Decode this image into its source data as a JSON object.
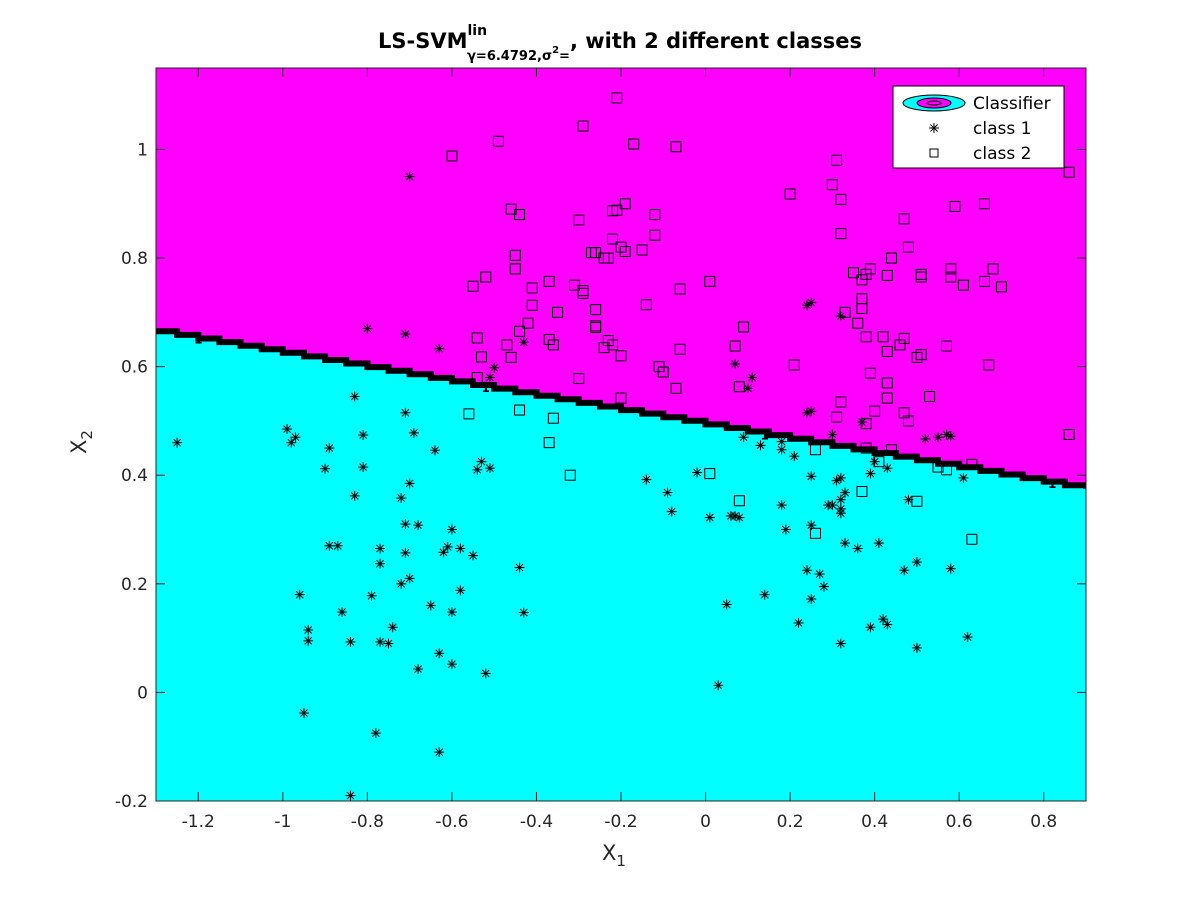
{
  "chart_data": {
    "type": "scatter",
    "title": {
      "main": "LS-SVM",
      "sup": "lin",
      "sub_gamma": "γ=6.4792,",
      "sub_sigma": "σ",
      "sub_sigma_exp": "2",
      "sub_end": "=",
      "tail": ", with 2 different classes"
    },
    "xlabel": "X",
    "xlabel_sub": "1",
    "ylabel": "X",
    "ylabel_sub": "2",
    "xlim": [
      -1.3,
      0.9
    ],
    "ylim": [
      -0.2,
      1.15
    ],
    "xticks": [
      "-1.2",
      "-1",
      "-0.8",
      "-0.6",
      "-0.4",
      "-0.2",
      "0",
      "0.2",
      "0.4",
      "0.6",
      "0.8"
    ],
    "yticks": [
      "-0.2",
      "0",
      "0.2",
      "0.4",
      "0.6",
      "0.8",
      "1"
    ],
    "grid": false,
    "legend_position": "top-right",
    "legend": [
      "Classifier",
      "class 1",
      "class 2"
    ],
    "region_colors": {
      "class1": "#00ffff",
      "class2": "#ff00ff"
    },
    "boundary": {
      "x": [
        -1.3,
        0.9
      ],
      "y": [
        0.665,
        0.375
      ],
      "label": "1"
    },
    "class1": [
      [
        -1.25,
        0.46
      ],
      [
        -0.99,
        0.485
      ],
      [
        -0.97,
        0.47
      ],
      [
        -0.98,
        0.46
      ],
      [
        -0.9,
        0.412
      ],
      [
        -0.89,
        0.45
      ],
      [
        -0.81,
        0.474
      ],
      [
        -0.81,
        0.415
      ],
      [
        -0.83,
        0.545
      ],
      [
        -0.8,
        0.67
      ],
      [
        -0.71,
        0.66
      ],
      [
        -0.7,
        0.95
      ],
      [
        -0.71,
        0.515
      ],
      [
        -0.69,
        0.478
      ],
      [
        -0.72,
        0.358
      ],
      [
        -0.7,
        0.385
      ],
      [
        -0.71,
        0.31
      ],
      [
        -0.68,
        0.308
      ],
      [
        -0.64,
        0.446
      ],
      [
        -0.63,
        0.633
      ],
      [
        -0.83,
        0.362
      ],
      [
        -0.89,
        0.27
      ],
      [
        -0.87,
        0.27
      ],
      [
        -0.77,
        0.265
      ],
      [
        -0.77,
        0.237
      ],
      [
        -0.71,
        0.257
      ],
      [
        -0.7,
        0.21
      ],
      [
        -0.72,
        0.2
      ],
      [
        -0.79,
        0.178
      ],
      [
        -0.96,
        0.18
      ],
      [
        -0.94,
        0.115
      ],
      [
        -0.94,
        0.095
      ],
      [
        -0.86,
        0.148
      ],
      [
        -0.84,
        0.093
      ],
      [
        -0.77,
        0.093
      ],
      [
        -0.75,
        0.09
      ],
      [
        -0.74,
        0.12
      ],
      [
        -0.68,
        0.043
      ],
      [
        -0.62,
        0.258
      ],
      [
        -0.61,
        0.268
      ],
      [
        -0.6,
        0.3
      ],
      [
        -0.58,
        0.265
      ],
      [
        -0.58,
        0.188
      ],
      [
        -0.65,
        0.16
      ],
      [
        -0.6,
        0.148
      ],
      [
        -0.63,
        0.072
      ],
      [
        -0.6,
        0.052
      ],
      [
        -0.52,
        0.035
      ],
      [
        -0.55,
        0.252
      ],
      [
        -0.95,
        -0.038
      ],
      [
        -0.78,
        -0.075
      ],
      [
        -0.63,
        -0.11
      ],
      [
        -0.84,
        -0.19
      ],
      [
        -0.54,
        0.41
      ],
      [
        -0.53,
        0.425
      ],
      [
        -0.51,
        0.413
      ],
      [
        -0.5,
        0.598
      ],
      [
        -0.51,
        0.58
      ],
      [
        -0.44,
        0.23
      ],
      [
        -0.43,
        0.147
      ],
      [
        -0.43,
        0.645
      ],
      [
        -0.14,
        0.392
      ],
      [
        -0.09,
        0.368
      ],
      [
        -0.08,
        0.333
      ],
      [
        -0.02,
        0.405
      ],
      [
        0.01,
        0.322
      ],
      [
        0.05,
        0.162
      ],
      [
        0.06,
        0.325
      ],
      [
        0.07,
        0.325
      ],
      [
        0.08,
        0.322
      ],
      [
        0.07,
        0.605
      ],
      [
        0.09,
        0.47
      ],
      [
        0.1,
        0.56
      ],
      [
        0.11,
        0.58
      ],
      [
        0.13,
        0.455
      ],
      [
        0.14,
        0.18
      ],
      [
        0.18,
        0.462
      ],
      [
        0.18,
        0.447
      ],
      [
        0.18,
        0.345
      ],
      [
        0.19,
        0.3
      ],
      [
        0.21,
        0.435
      ],
      [
        0.22,
        0.128
      ],
      [
        0.24,
        0.225
      ],
      [
        0.24,
        0.713
      ],
      [
        0.25,
        0.718
      ],
      [
        0.25,
        0.518
      ],
      [
        0.24,
        0.515
      ],
      [
        0.25,
        0.398
      ],
      [
        0.25,
        0.308
      ],
      [
        0.25,
        0.172
      ],
      [
        0.27,
        0.218
      ],
      [
        0.28,
        0.195
      ],
      [
        0.29,
        0.345
      ],
      [
        0.3,
        0.345
      ],
      [
        0.3,
        0.475
      ],
      [
        0.31,
        0.39
      ],
      [
        0.32,
        0.395
      ],
      [
        0.32,
        0.355
      ],
      [
        0.32,
        0.338
      ],
      [
        0.32,
        0.33
      ],
      [
        0.32,
        0.09
      ],
      [
        0.32,
        0.693
      ],
      [
        0.33,
        0.368
      ],
      [
        0.33,
        0.275
      ],
      [
        0.36,
        0.265
      ],
      [
        0.37,
        0.498
      ],
      [
        0.39,
        0.12
      ],
      [
        0.39,
        0.403
      ],
      [
        0.4,
        0.425
      ],
      [
        0.41,
        0.275
      ],
      [
        0.42,
        0.135
      ],
      [
        0.43,
        0.125
      ],
      [
        0.43,
        0.413
      ],
      [
        0.47,
        0.225
      ],
      [
        0.48,
        0.355
      ],
      [
        0.5,
        0.24
      ],
      [
        0.5,
        0.082
      ],
      [
        0.52,
        0.467
      ],
      [
        0.55,
        0.47
      ],
      [
        0.57,
        0.475
      ],
      [
        0.58,
        0.472
      ],
      [
        0.58,
        0.228
      ],
      [
        0.61,
        0.395
      ],
      [
        0.62,
        0.102
      ],
      [
        0.03,
        0.013
      ]
    ],
    "class2": [
      [
        -0.6,
        0.988
      ],
      [
        -0.49,
        1.015
      ],
      [
        -0.29,
        1.043
      ],
      [
        -0.21,
        1.095
      ],
      [
        -0.17,
        1.01
      ],
      [
        -0.07,
        1.005
      ],
      [
        -0.46,
        0.89
      ],
      [
        -0.44,
        0.88
      ],
      [
        -0.3,
        0.87
      ],
      [
        -0.22,
        0.887
      ],
      [
        -0.21,
        0.888
      ],
      [
        -0.19,
        0.9
      ],
      [
        -0.12,
        0.88
      ],
      [
        -0.12,
        0.842
      ],
      [
        -0.15,
        0.815
      ],
      [
        -0.19,
        0.812
      ],
      [
        -0.2,
        0.82
      ],
      [
        -0.22,
        0.835
      ],
      [
        -0.23,
        0.8
      ],
      [
        -0.24,
        0.8
      ],
      [
        -0.26,
        0.81
      ],
      [
        -0.45,
        0.805
      ],
      [
        -0.45,
        0.78
      ],
      [
        -0.52,
        0.765
      ],
      [
        -0.55,
        0.748
      ],
      [
        -0.41,
        0.745
      ],
      [
        -0.37,
        0.757
      ],
      [
        -0.31,
        0.75
      ],
      [
        -0.29,
        0.735
      ],
      [
        -0.29,
        0.74
      ],
      [
        -0.26,
        0.705
      ],
      [
        -0.35,
        0.7
      ],
      [
        -0.41,
        0.713
      ],
      [
        -0.42,
        0.68
      ],
      [
        -0.44,
        0.665
      ],
      [
        -0.47,
        0.64
      ],
      [
        -0.46,
        0.617
      ],
      [
        -0.54,
        0.653
      ],
      [
        -0.53,
        0.618
      ],
      [
        -0.54,
        0.58
      ],
      [
        -0.26,
        0.672
      ],
      [
        -0.26,
        0.675
      ],
      [
        -0.22,
        0.64
      ],
      [
        -0.24,
        0.635
      ],
      [
        -0.23,
        0.648
      ],
      [
        -0.2,
        0.62
      ],
      [
        -0.37,
        0.65
      ],
      [
        -0.36,
        0.64
      ],
      [
        -0.36,
        0.505
      ],
      [
        -0.37,
        0.46
      ],
      [
        -0.44,
        0.52
      ],
      [
        -0.56,
        0.513
      ],
      [
        -0.32,
        0.4
      ],
      [
        -0.3,
        0.578
      ],
      [
        -0.2,
        0.542
      ],
      [
        -0.14,
        0.714
      ],
      [
        -0.11,
        0.6
      ],
      [
        -0.1,
        0.59
      ],
      [
        -0.07,
        0.56
      ],
      [
        -0.06,
        0.632
      ],
      [
        -0.06,
        0.743
      ],
      [
        0.01,
        0.403
      ],
      [
        0.01,
        0.757
      ],
      [
        0.07,
        0.638
      ],
      [
        0.08,
        0.563
      ],
      [
        0.09,
        0.673
      ],
      [
        0.08,
        0.353
      ],
      [
        0.2,
        0.918
      ],
      [
        0.21,
        0.603
      ],
      [
        0.26,
        0.447
      ],
      [
        0.26,
        0.293
      ],
      [
        0.3,
        0.935
      ],
      [
        0.31,
        0.98
      ],
      [
        0.32,
        0.908
      ],
      [
        0.32,
        0.845
      ],
      [
        0.31,
        0.507
      ],
      [
        0.32,
        0.535
      ],
      [
        0.35,
        0.773
      ],
      [
        0.37,
        0.725
      ],
      [
        0.37,
        0.707
      ],
      [
        0.37,
        0.76
      ],
      [
        0.38,
        0.77
      ],
      [
        0.39,
        0.78
      ],
      [
        0.38,
        0.655
      ],
      [
        0.39,
        0.588
      ],
      [
        0.38,
        0.495
      ],
      [
        0.37,
        0.37
      ],
      [
        0.38,
        0.45
      ],
      [
        0.4,
        0.518
      ],
      [
        0.41,
        0.425
      ],
      [
        0.42,
        0.655
      ],
      [
        0.43,
        0.628
      ],
      [
        0.43,
        0.542
      ],
      [
        0.43,
        0.57
      ],
      [
        0.43,
        0.768
      ],
      [
        0.44,
        0.8
      ],
      [
        0.44,
        0.447
      ],
      [
        0.46,
        0.64
      ],
      [
        0.47,
        0.872
      ],
      [
        0.47,
        0.652
      ],
      [
        0.47,
        0.515
      ],
      [
        0.48,
        0.82
      ],
      [
        0.48,
        0.5
      ],
      [
        0.5,
        0.617
      ],
      [
        0.51,
        0.77
      ],
      [
        0.51,
        0.765
      ],
      [
        0.51,
        0.622
      ],
      [
        0.5,
        0.352
      ],
      [
        0.53,
        0.545
      ],
      [
        0.55,
        0.415
      ],
      [
        0.57,
        0.41
      ],
      [
        0.57,
        0.638
      ],
      [
        0.58,
        0.78
      ],
      [
        0.58,
        0.765
      ],
      [
        0.59,
        0.895
      ],
      [
        0.61,
        0.75
      ],
      [
        0.63,
        0.42
      ],
      [
        0.63,
        0.282
      ],
      [
        0.66,
        0.9
      ],
      [
        0.66,
        0.757
      ],
      [
        0.67,
        0.603
      ],
      [
        0.68,
        0.78
      ],
      [
        0.7,
        0.747
      ],
      [
        0.86,
        0.958
      ],
      [
        0.86,
        0.475
      ],
      [
        0.36,
        0.68
      ],
      [
        -0.27,
        0.81
      ],
      [
        0.33,
        0.7
      ]
    ]
  }
}
